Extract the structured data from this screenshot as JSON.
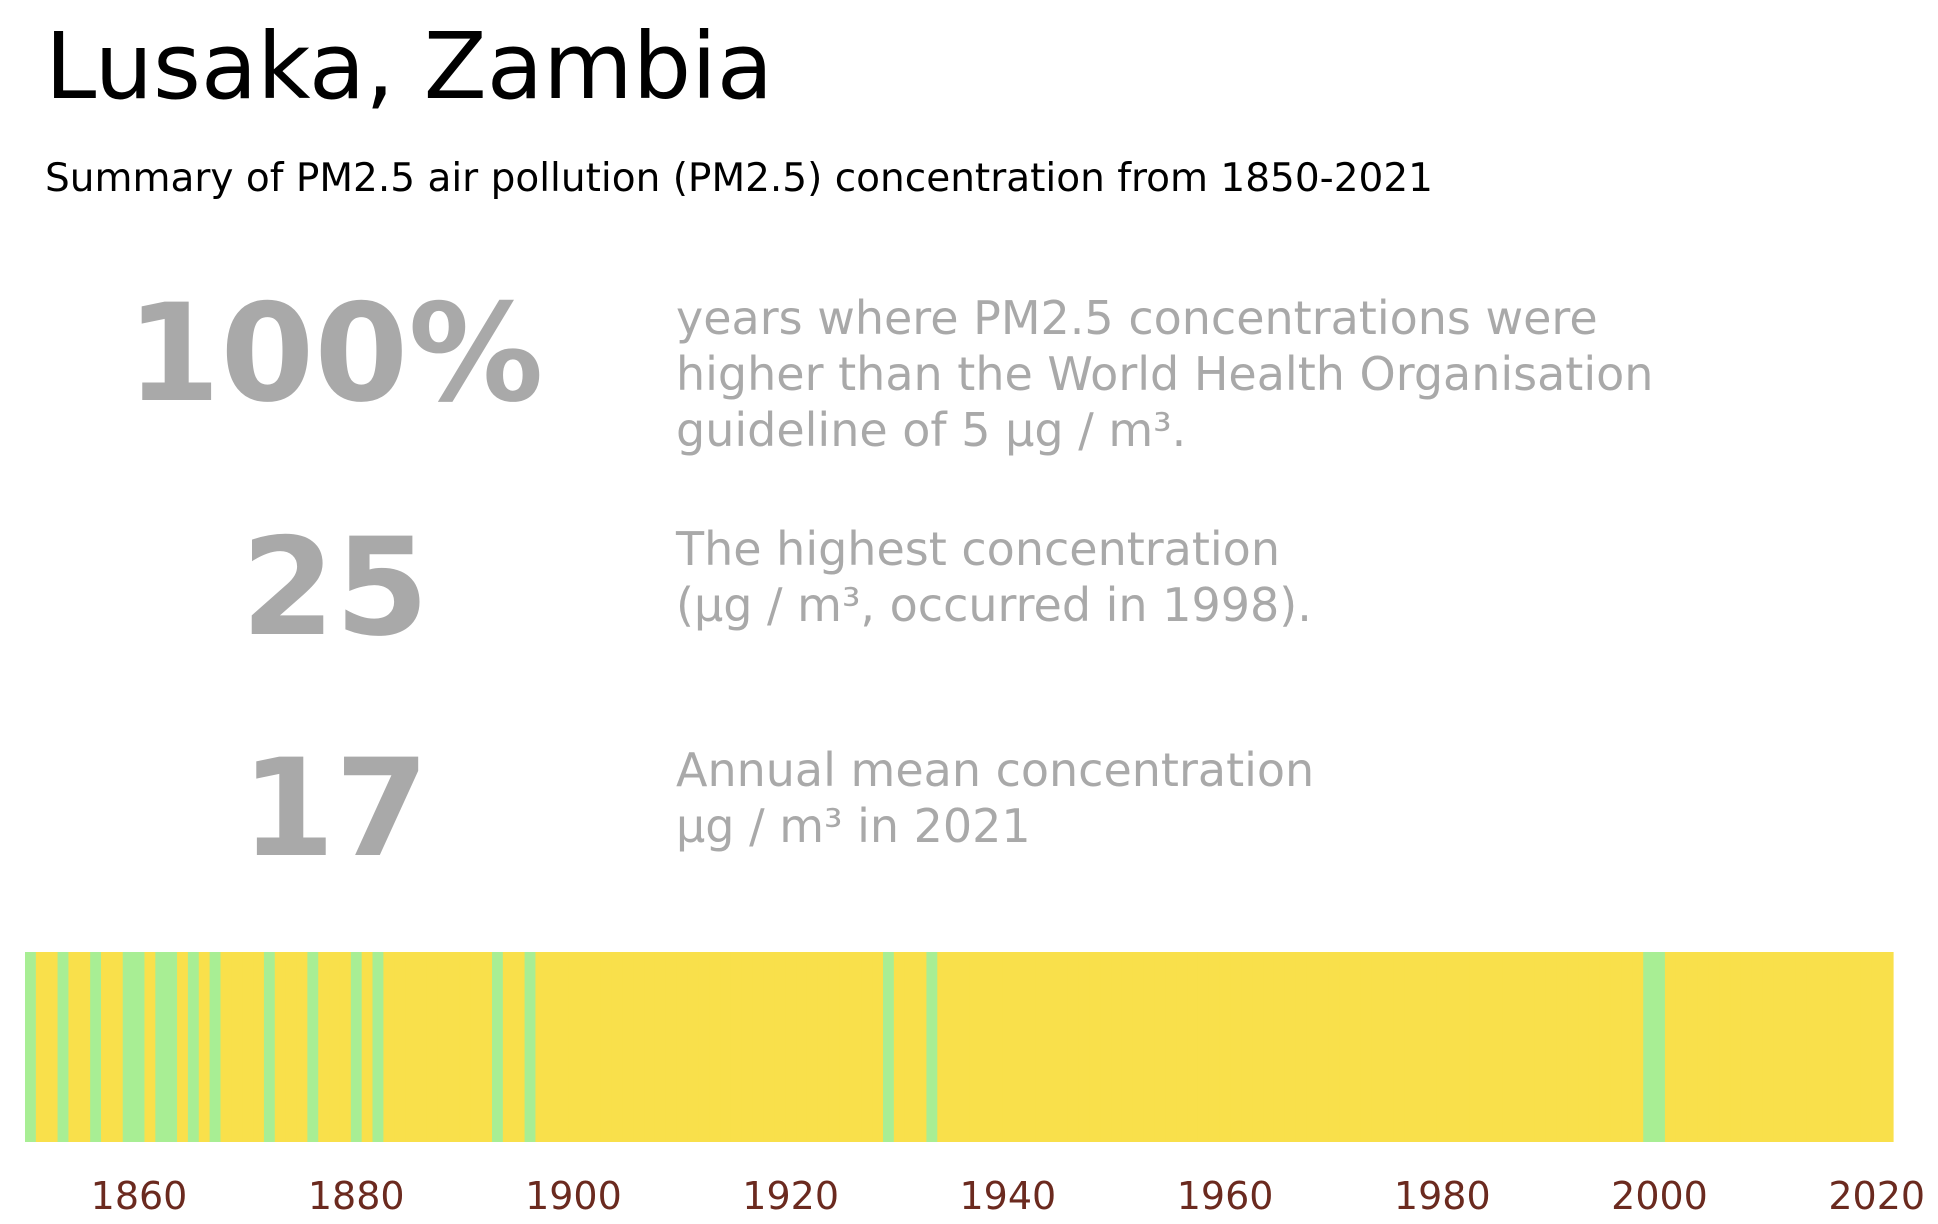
{
  "title": "Lusaka, Zambia",
  "subtitle": "Summary of PM2.5 air pollution (PM2.5) concentration from 1850-2021",
  "stats": [
    {
      "value": "100%",
      "lines": [
        "years where PM2.5 concentrations were",
        "higher than the World Health Organisation",
        "guideline of 5 µg / m³."
      ]
    },
    {
      "value": "25",
      "lines": [
        "The highest concentration",
        "(µg / m³, occurred in 1998)."
      ]
    },
    {
      "value": "17",
      "lines": [
        "Annual mean concentration",
        "µg / m³ in 2021"
      ]
    }
  ],
  "colors": {
    "stat_text": "#a9a9a9",
    "high": "#f9e04b",
    "low": "#a8ee94",
    "tick_label": "#6b2a1f"
  },
  "chart_data": {
    "type": "heatmap",
    "title": "",
    "xlabel": "",
    "ylabel": "",
    "xlim": [
      1850,
      2022
    ],
    "x_ticks": [
      1860,
      1880,
      1900,
      1920,
      1940,
      1960,
      1980,
      2000,
      2020
    ],
    "grid": false,
    "legend": "none",
    "low_years": [
      1850,
      1853,
      1856,
      1859,
      1860,
      1862,
      1863,
      1865,
      1867,
      1872,
      1876,
      1880,
      1882,
      1893,
      1896,
      1929,
      1933,
      1999,
      2000
    ]
  }
}
